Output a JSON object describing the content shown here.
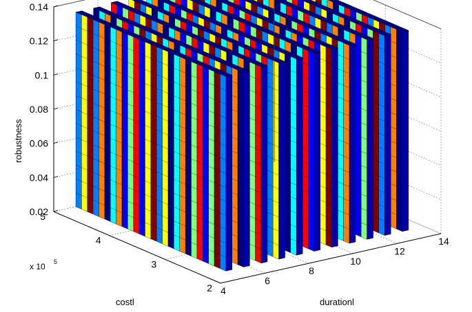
{
  "chart_data": {
    "type": "3d-bar",
    "title": "",
    "xlabel": "durationl",
    "ylabel": "costl",
    "ylabel_multiplier": "x 10",
    "ylabel_exponent": "5",
    "zlabel": "robustness",
    "x_ticks": [
      "4",
      "6",
      "8",
      "10",
      "12",
      "14"
    ],
    "y_ticks": [
      "2",
      "3",
      "4",
      "5"
    ],
    "z_ticks": [
      "0.02",
      "0.04",
      "0.06",
      "0.08",
      "0.1",
      "0.12",
      "0.14"
    ],
    "xlim": [
      4,
      14
    ],
    "ylim": [
      2,
      5
    ],
    "zlim": [
      0.02,
      0.14
    ],
    "grid": true,
    "colormap": "jet",
    "colors": [
      "#00007f",
      "#0000ff",
      "#007fff",
      "#00ffff",
      "#7fff7f",
      "#ffff00",
      "#ff7f00",
      "#ff0000",
      "#7f0000"
    ],
    "slabs": [
      {
        "x": 5.0,
        "z_top": 0.134
      },
      {
        "x": 5.8,
        "z_top": 0.134
      },
      {
        "x": 6.6,
        "z_top": 0.135
      },
      {
        "x": 7.4,
        "z_top": 0.135
      },
      {
        "x": 8.2,
        "z_top": 0.135
      },
      {
        "x": 9.0,
        "z_top": 0.136
      },
      {
        "x": 9.8,
        "z_top": 0.136
      },
      {
        "x": 10.6,
        "z_top": 0.136
      },
      {
        "x": 11.4,
        "z_top": 0.137
      },
      {
        "x": 12.2,
        "z_top": 0.137
      },
      {
        "x": 13.0,
        "z_top": 0.137
      }
    ],
    "slab_y_range": [
      2.3,
      5.0
    ],
    "z_base": 0.02
  }
}
